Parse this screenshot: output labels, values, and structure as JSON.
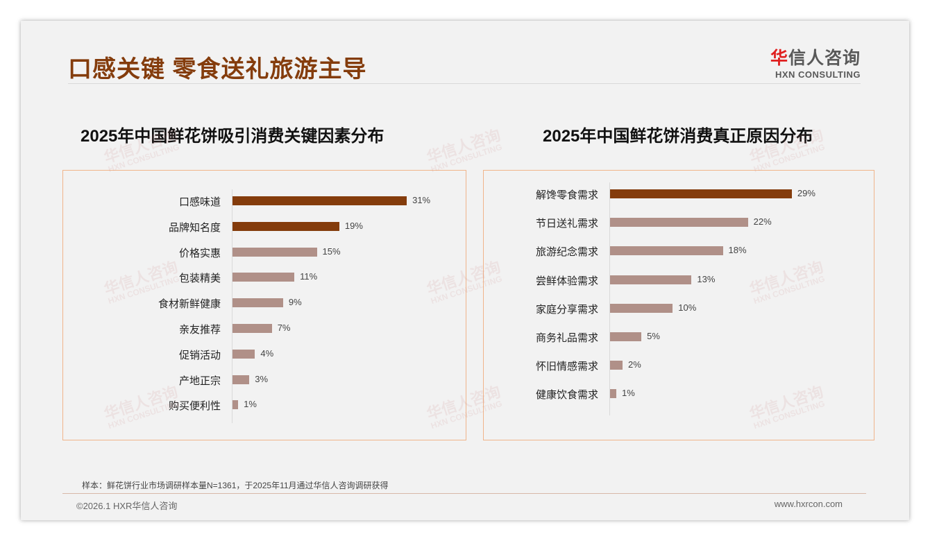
{
  "header": {
    "title": "口感关键 零食送礼旅游主导",
    "logo_cn_red": "华",
    "logo_cn_rest": "信人咨询",
    "logo_en": "HXN CONSULTING"
  },
  "watermark": {
    "cn": "华信人咨询",
    "en": "HXN CONSULTING"
  },
  "colors": {
    "highlight": "#843c0c",
    "normal": "#b09088",
    "border": "#f0b48a"
  },
  "chart_data": [
    {
      "type": "bar",
      "orientation": "horizontal",
      "title": "2025年中国鲜花饼吸引消费关键因素分布",
      "categories": [
        "口感味道",
        "品牌知名度",
        "价格实惠",
        "包装精美",
        "食材新鲜健康",
        "亲友推荐",
        "促销活动",
        "产地正宗",
        "购买便利性"
      ],
      "values": [
        31,
        19,
        15,
        11,
        9,
        7,
        4,
        3,
        1
      ],
      "labels": [
        "31%",
        "19%",
        "15%",
        "11%",
        "9%",
        "7%",
        "4%",
        "3%",
        "1%"
      ],
      "highlight_count": 2,
      "unit": "%"
    },
    {
      "type": "bar",
      "orientation": "horizontal",
      "title": "2025年中国鲜花饼消费真正原因分布",
      "categories": [
        "解馋零食需求",
        "节日送礼需求",
        "旅游纪念需求",
        "尝鲜体验需求",
        "家庭分享需求",
        "商务礼品需求",
        "怀旧情感需求",
        "健康饮食需求"
      ],
      "values": [
        29,
        22,
        18,
        13,
        10,
        5,
        2,
        1
      ],
      "labels": [
        "29%",
        "22%",
        "18%",
        "13%",
        "10%",
        "5%",
        "2%",
        "1%"
      ],
      "highlight_count": 1,
      "unit": "%"
    }
  ],
  "footer": {
    "note": "样本：鲜花饼行业市场调研样本量N=1361，于2025年11月通过华信人咨询调研获得",
    "copyright": "©2026.1 HXR华信人咨询",
    "website": "www.hxrcon.com"
  }
}
